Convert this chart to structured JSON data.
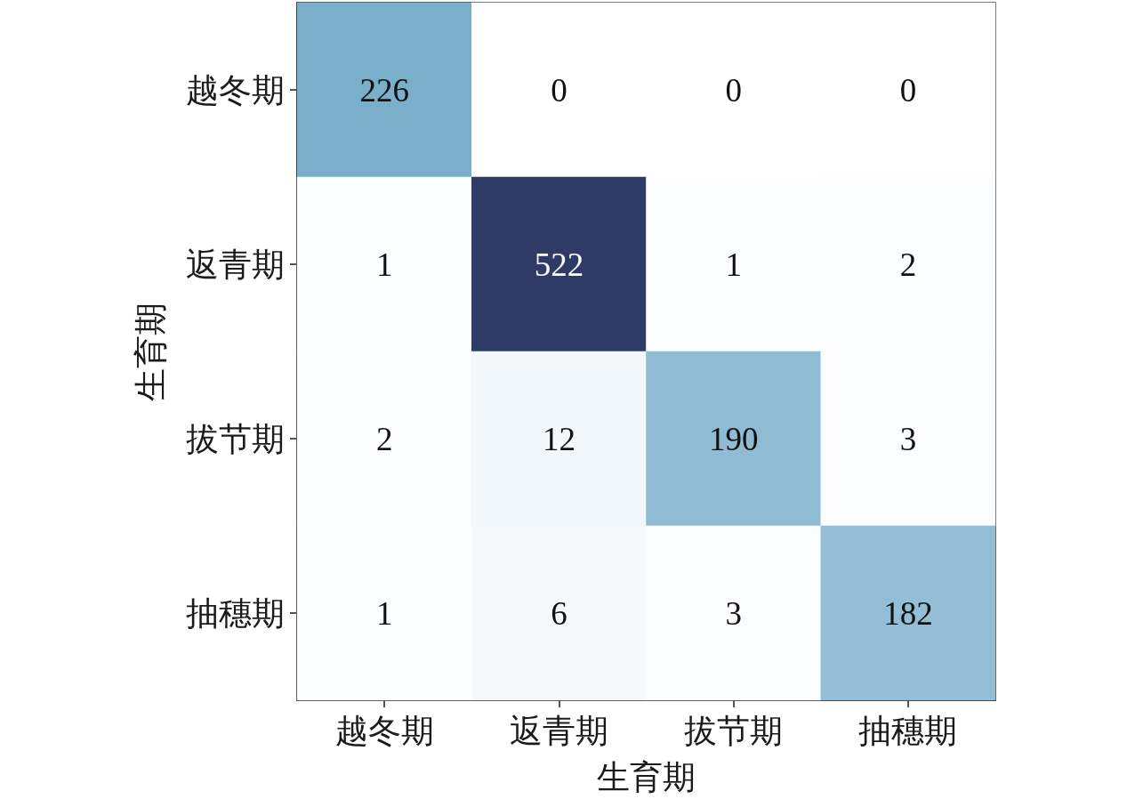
{
  "chart_data": {
    "type": "heatmap",
    "xlabel": "生育期",
    "ylabel": "生育期",
    "categories": [
      "越冬期",
      "返青期",
      "拔节期",
      "抽穗期"
    ],
    "y_categories": [
      "越冬期",
      "返青期",
      "拔节期",
      "抽穗期"
    ],
    "cells": [
      [
        226,
        0,
        0,
        0
      ],
      [
        1,
        522,
        1,
        2
      ],
      [
        2,
        12,
        190,
        3
      ],
      [
        1,
        6,
        3,
        182
      ]
    ],
    "colors": [
      [
        "#7aafca",
        "#ffffff",
        "#ffffff",
        "#ffffff"
      ],
      [
        "#fdfeff",
        "#2e3b67",
        "#fdfeff",
        "#fcfdfe"
      ],
      [
        "#fcfdfe",
        "#f1f7fa",
        "#8fbbd3",
        "#fbfcfd"
      ],
      [
        "#fdfeff",
        "#f6f9fb",
        "#fafcfd",
        "#93bed5"
      ]
    ],
    "data_labels": true
  }
}
